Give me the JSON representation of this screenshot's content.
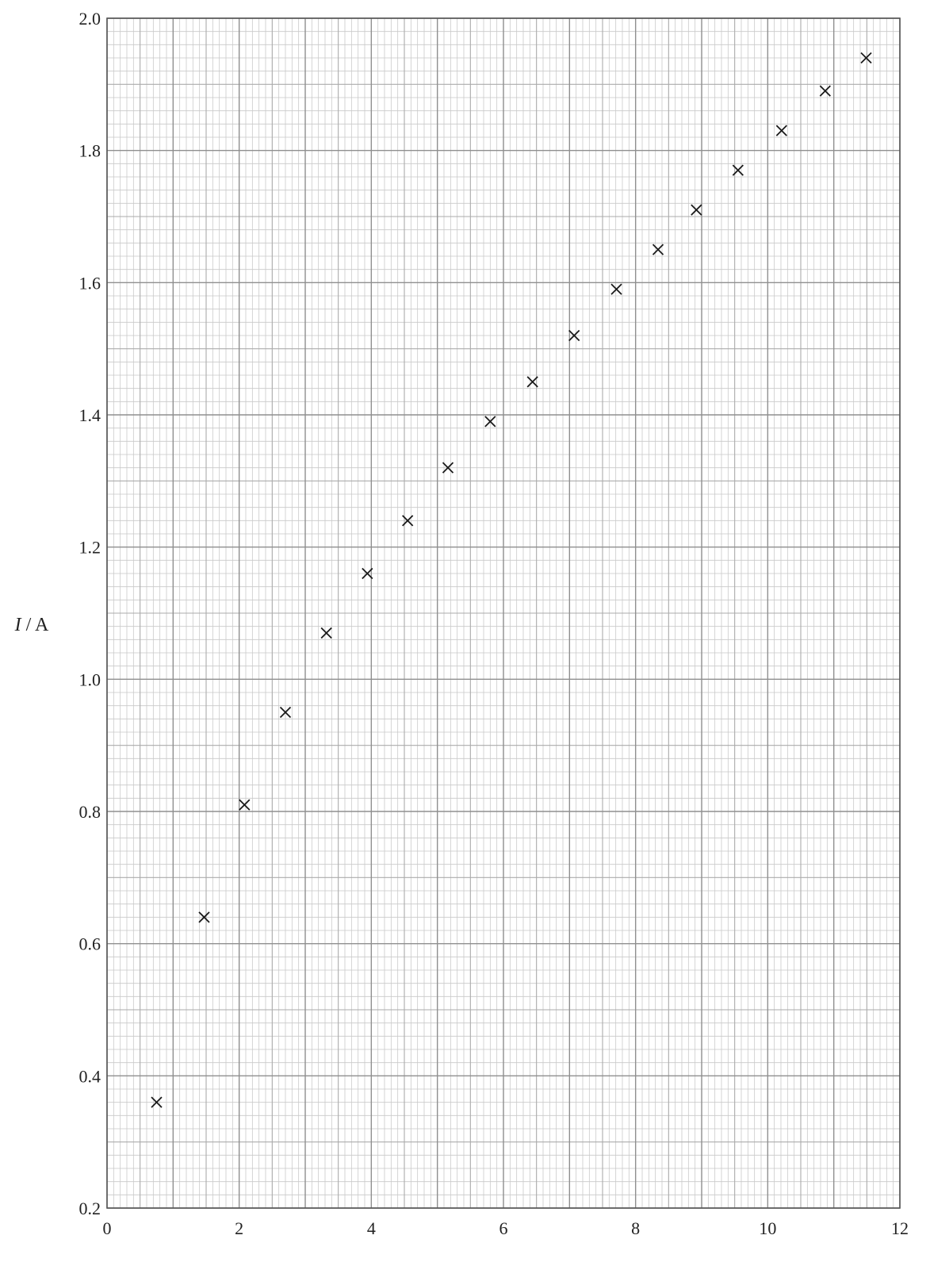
{
  "chart_data": {
    "type": "scatter",
    "marker": "cross",
    "xlabel": "",
    "ylabel": {
      "symbol": "I",
      "unit": " / A"
    },
    "xlim": [
      0,
      12
    ],
    "ylim": [
      0.2,
      2.0
    ],
    "grid": true,
    "x_ticks": [
      "0",
      "2",
      "4",
      "6",
      "8",
      "10",
      "12"
    ],
    "y_ticks": [
      "0.2",
      "0.4",
      "0.6",
      "0.8",
      "1.0",
      "1.2",
      "1.4",
      "1.6",
      "1.8",
      "2.0"
    ],
    "points": [
      {
        "x": 0.75,
        "y": 0.36
      },
      {
        "x": 1.47,
        "y": 0.64
      },
      {
        "x": 2.08,
        "y": 0.81
      },
      {
        "x": 2.7,
        "y": 0.95
      },
      {
        "x": 3.32,
        "y": 1.07
      },
      {
        "x": 3.94,
        "y": 1.16
      },
      {
        "x": 4.55,
        "y": 1.24
      },
      {
        "x": 5.16,
        "y": 1.32
      },
      {
        "x": 5.8,
        "y": 1.39
      },
      {
        "x": 6.44,
        "y": 1.45
      },
      {
        "x": 7.07,
        "y": 1.52
      },
      {
        "x": 7.71,
        "y": 1.59
      },
      {
        "x": 8.34,
        "y": 1.65
      },
      {
        "x": 8.92,
        "y": 1.71
      },
      {
        "x": 9.55,
        "y": 1.77
      },
      {
        "x": 10.21,
        "y": 1.83
      },
      {
        "x": 10.87,
        "y": 1.89
      },
      {
        "x": 11.49,
        "y": 1.94
      }
    ]
  }
}
